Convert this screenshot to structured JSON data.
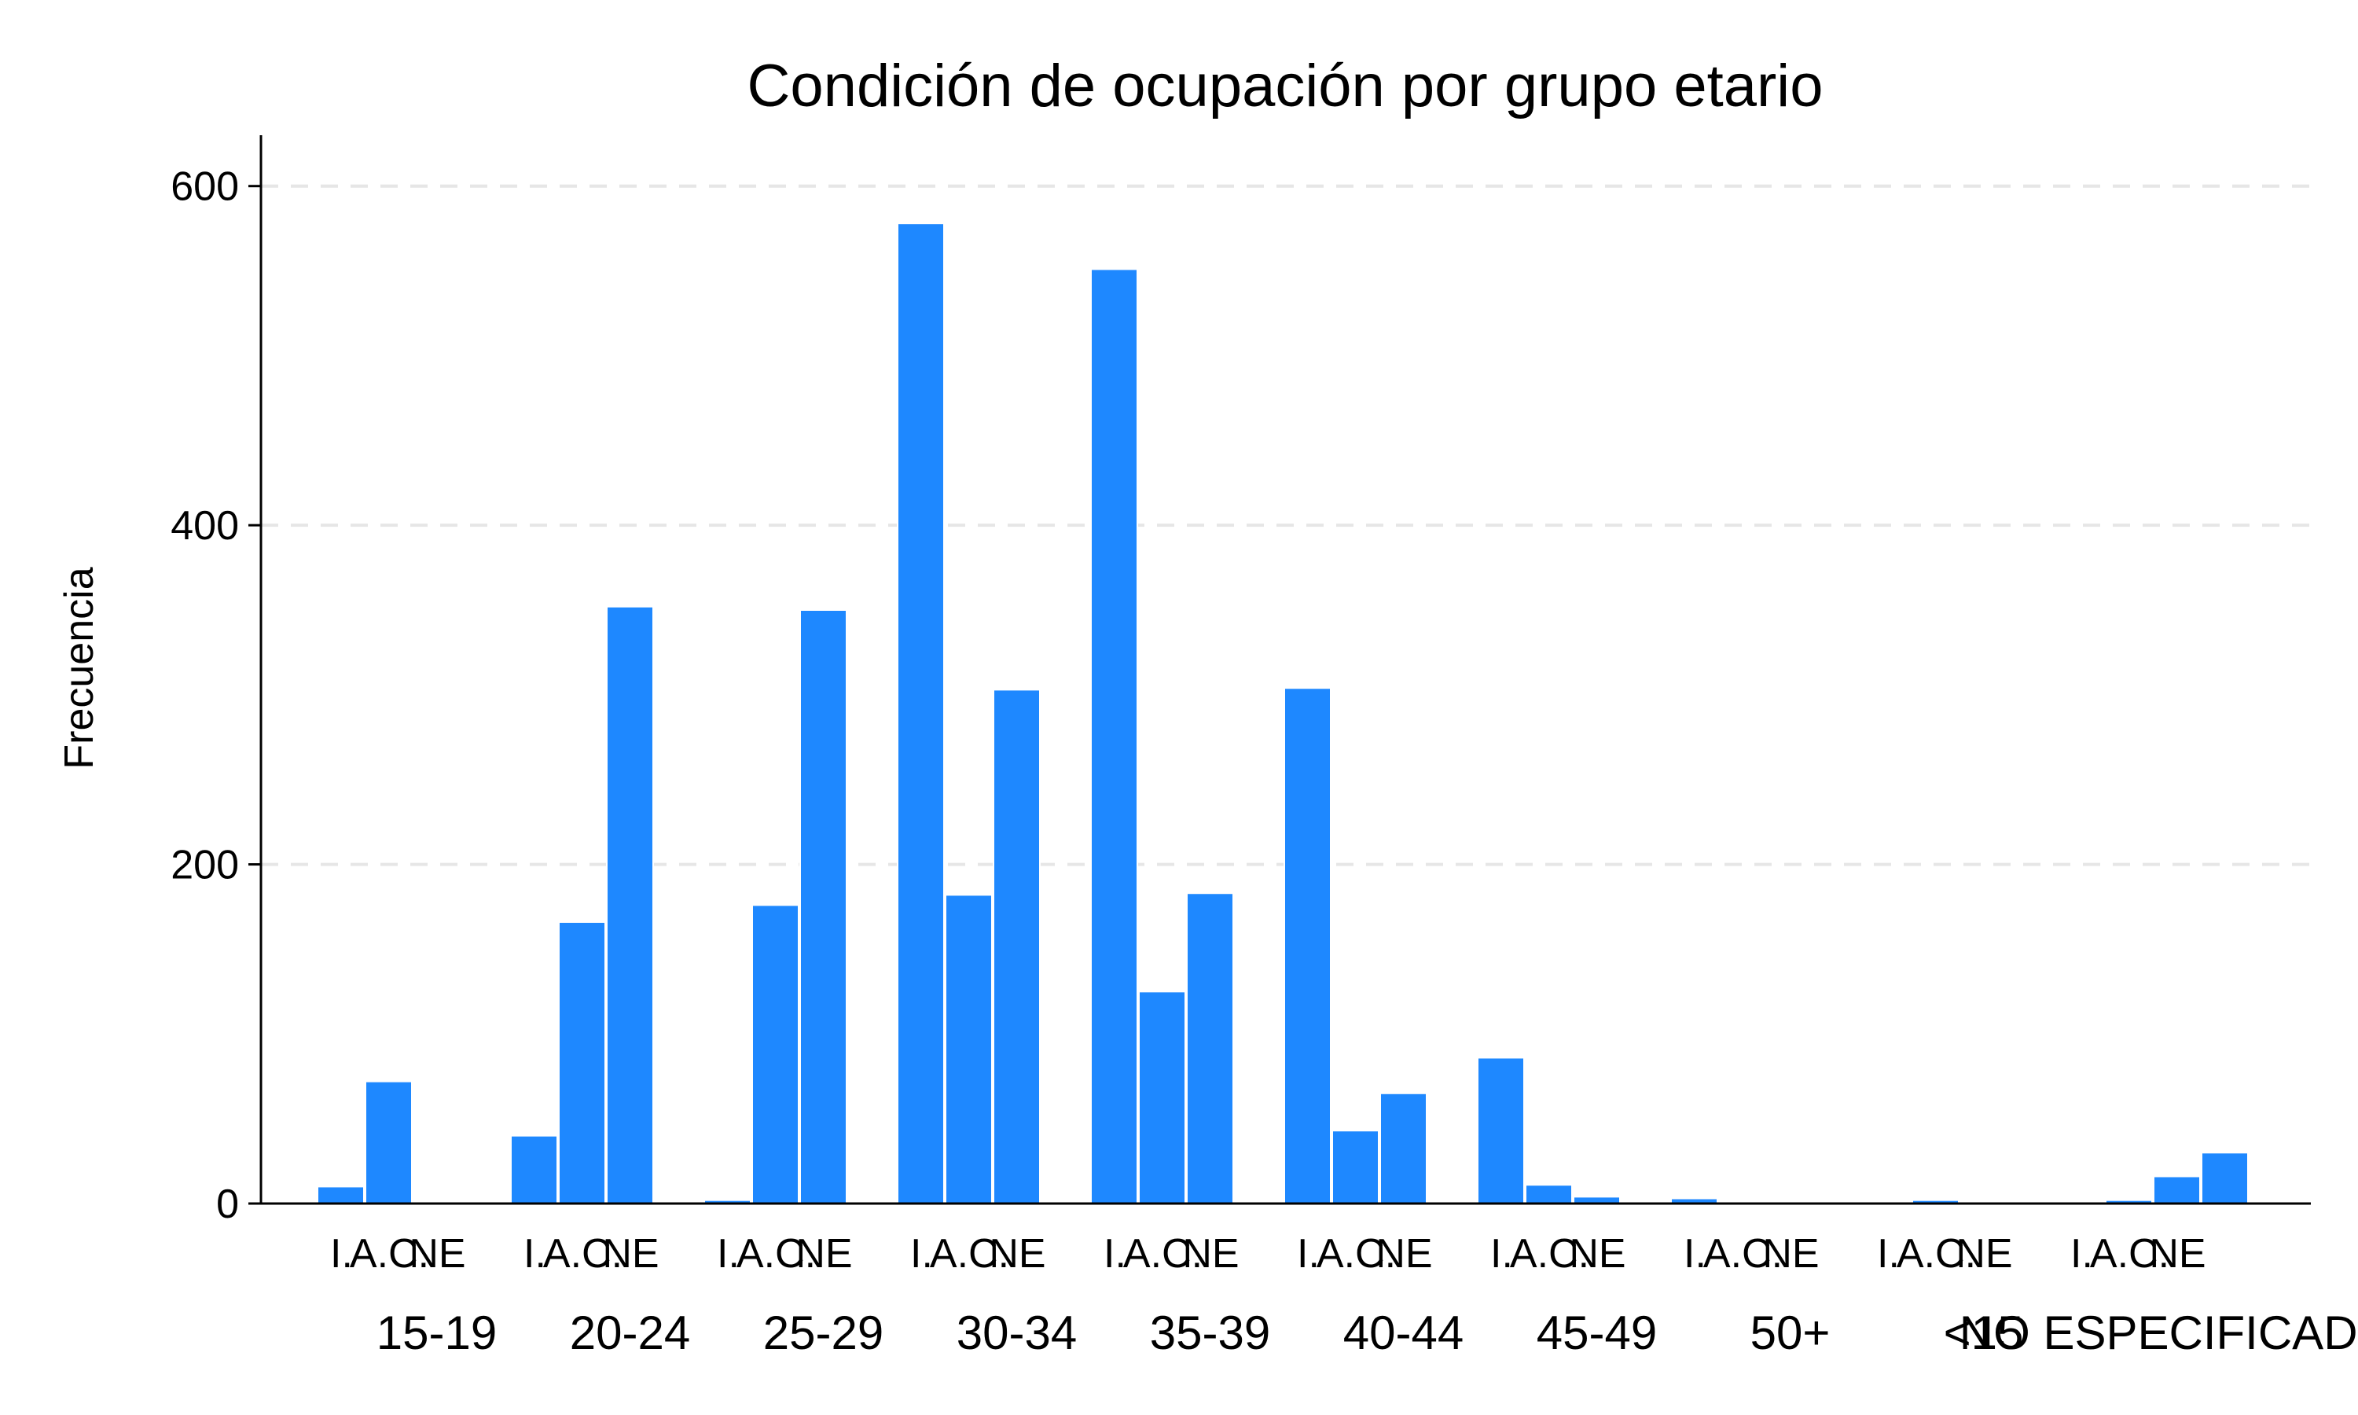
{
  "chart_data": {
    "type": "bar",
    "title": "Condición de ocupación por grupo etario",
    "xlabel": "",
    "ylabel": "Frecuencia",
    "ylim": [
      0,
      630
    ],
    "yticks": [
      0,
      200,
      400,
      600
    ],
    "grid": true,
    "subcategories": [
      "I.",
      "A.C.",
      "NE"
    ],
    "groups": [
      {
        "label": "15-19",
        "values": [
          10,
          72,
          0
        ]
      },
      {
        "label": "20-24",
        "values": [
          40,
          166,
          352
        ]
      },
      {
        "label": "25-29",
        "values": [
          2,
          176,
          350
        ]
      },
      {
        "label": "30-34",
        "values": [
          578,
          182,
          303
        ]
      },
      {
        "label": "35-39",
        "values": [
          551,
          125,
          183
        ]
      },
      {
        "label": "40-44",
        "values": [
          304,
          43,
          65
        ]
      },
      {
        "label": "45-49",
        "values": [
          86,
          11,
          4
        ]
      },
      {
        "label": "50+",
        "values": [
          3,
          0,
          0
        ]
      },
      {
        "label": "<15",
        "values": [
          0,
          2,
          0
        ]
      },
      {
        "label": "NO ESPECIFICADO",
        "values": [
          0,
          2,
          16
        ]
      }
    ],
    "trailing_bar": {
      "label": "NE",
      "value": 30
    },
    "colors": {
      "bar": "#1E88FF",
      "axis": "#000000",
      "grid": "#E6E6E6",
      "text": "#000000"
    }
  }
}
